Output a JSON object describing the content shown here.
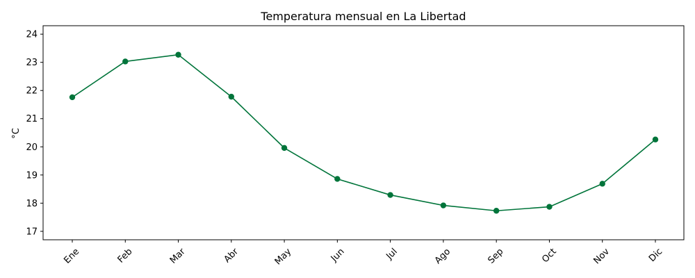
{
  "chart_data": {
    "type": "line",
    "title": "Temperatura mensual en La Libertad",
    "xlabel": "",
    "ylabel": "°C",
    "categories": [
      "Ene",
      "Feb",
      "Mar",
      "Abr",
      "May",
      "Jun",
      "Jul",
      "Ago",
      "Sep",
      "Oct",
      "Nov",
      "Dic"
    ],
    "series": [
      {
        "values": [
          21.76,
          23.03,
          23.27,
          21.78,
          19.96,
          18.86,
          18.29,
          17.92,
          17.73,
          17.87,
          18.69,
          20.26
        ],
        "color": "#00743a",
        "marker": "circle"
      }
    ],
    "ylim": [
      16.7,
      24.3
    ],
    "yticks": [
      17,
      18,
      19,
      20,
      21,
      22,
      23,
      24
    ],
    "grid": false,
    "legend": "none"
  }
}
